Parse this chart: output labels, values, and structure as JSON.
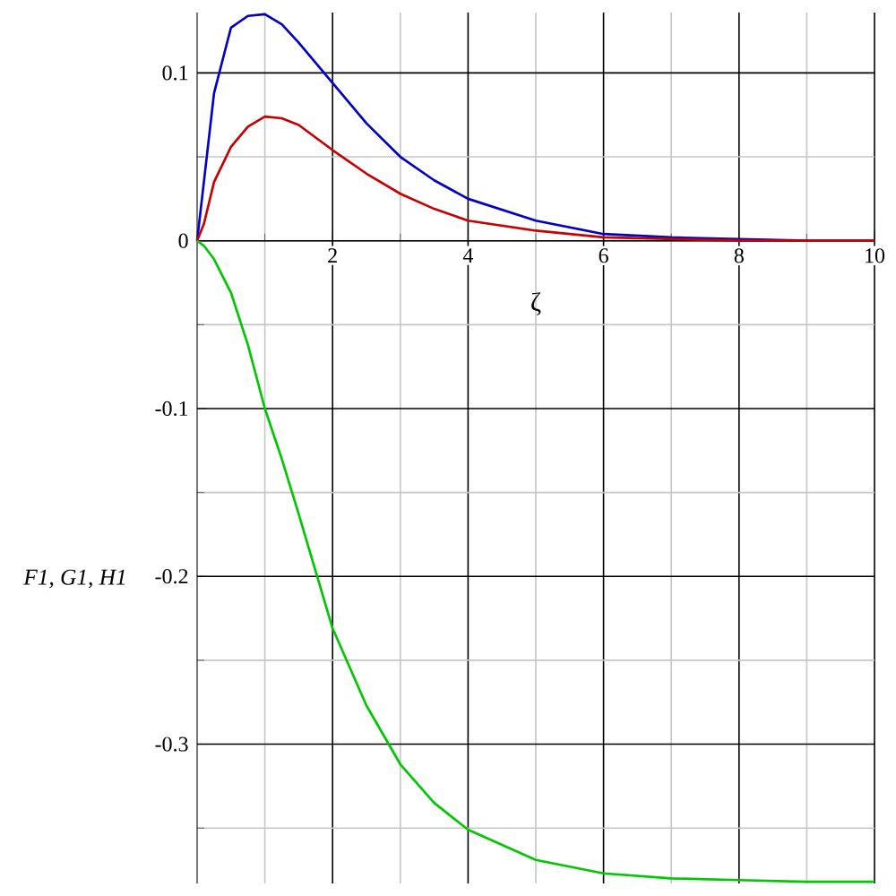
{
  "chart_data": {
    "type": "line",
    "xlabel": "ζ",
    "ylabel": "F1, G1, H1",
    "x": [
      0,
      0.1,
      0.25,
      0.5,
      0.75,
      1,
      1.25,
      1.5,
      2,
      2.5,
      3,
      3.5,
      4,
      5,
      6,
      7,
      8,
      9,
      10
    ],
    "series": [
      {
        "color": "#0000c8",
        "values": [
          0,
          0.035,
          0.088,
          0.127,
          0.134,
          0.135,
          0.129,
          0.118,
          0.094,
          0.07,
          0.05,
          0.036,
          0.025,
          0.012,
          0.004,
          0.002,
          0.001,
          0,
          0
        ]
      },
      {
        "color": "#c80000",
        "values": [
          0,
          0.01,
          0.035,
          0.056,
          0.068,
          0.074,
          0.073,
          0.069,
          0.054,
          0.04,
          0.028,
          0.019,
          0.012,
          0.006,
          0.002,
          0.001,
          0,
          0,
          0
        ]
      },
      {
        "color": "#00c800",
        "values": [
          0,
          -0.003,
          -0.011,
          -0.031,
          -0.062,
          -0.1,
          -0.13,
          -0.163,
          -0.231,
          -0.277,
          -0.312,
          -0.335,
          -0.351,
          -0.369,
          -0.377,
          -0.38,
          -0.381,
          -0.382,
          -0.382
        ]
      }
    ],
    "xlim": [
      0,
      10
    ],
    "ylim": [
      -0.383,
      0.136
    ],
    "xticks": [
      {
        "value": 1,
        "label": null
      },
      2,
      {
        "value": 3,
        "label": null
      },
      4,
      {
        "value": 5,
        "label": null
      },
      6,
      {
        "value": 7,
        "label": null
      },
      8,
      {
        "value": 9,
        "label": null
      },
      10
    ],
    "yticks": [
      0.1,
      {
        "value": 0.05,
        "label": null
      },
      0,
      {
        "value": -0.05,
        "label": null
      },
      -0.1,
      {
        "value": -0.15,
        "label": null
      },
      -0.2,
      {
        "value": -0.25,
        "label": null
      },
      -0.3,
      {
        "value": -0.35,
        "label": null
      }
    ],
    "grid": true,
    "marker": "none",
    "line_style": "solid"
  }
}
